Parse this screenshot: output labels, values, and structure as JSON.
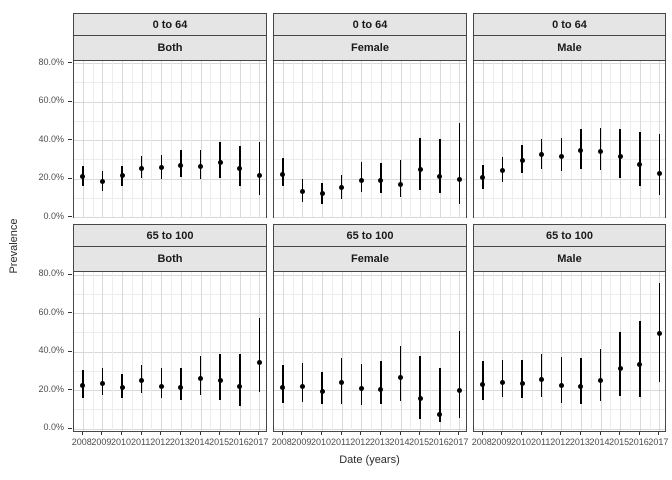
{
  "figure": {
    "x_axis_title": "Date (years)",
    "y_axis_title": "Prevalence"
  },
  "chart_data": {
    "type": "scatter",
    "subtype": "pointrange-with-error-bars, faceted grid (2 rows x 3 cols)",
    "title": "",
    "xlabel": "Date (years)",
    "ylabel": "Prevalence",
    "x": [
      2008,
      2009,
      2010,
      2011,
      2012,
      2013,
      2014,
      2015,
      2016,
      2017
    ],
    "x_tick_labels": [
      "2008",
      "2009",
      "2010",
      "2011",
      "2012",
      "2013",
      "2014",
      "2015",
      "2016",
      "2017"
    ],
    "y_tick_labels": [
      "80.0%",
      "60.0%",
      "40.0%",
      "20.0%",
      "0.0%"
    ],
    "y_tick_values": [
      80,
      60,
      40,
      20,
      0
    ],
    "ylim_percent": [
      0,
      80
    ],
    "grid": "major and minor, light gray on white",
    "legend": "none",
    "facet_row_labels": [
      "0 to 64",
      "65 to 100"
    ],
    "facet_col_labels": [
      "Both",
      "Female",
      "Male"
    ],
    "panels": [
      {
        "age_group": "0 to 64",
        "sex": "Both",
        "estimates": [
          21,
          18.5,
          21.5,
          25,
          25.5,
          27,
          26,
          28.5,
          25,
          21.5
        ],
        "ci_low": [
          16,
          13.5,
          16,
          20,
          19.5,
          21,
          19.5,
          20.5,
          16,
          11.5
        ],
        "ci_high": [
          26.5,
          24,
          26.5,
          31.5,
          32,
          35,
          35,
          39,
          37,
          39
        ]
      },
      {
        "age_group": "0 to 64",
        "sex": "Female",
        "estimates": [
          22,
          13.5,
          12,
          15.5,
          19,
          19,
          17,
          24.5,
          21,
          19.5
        ],
        "ci_low": [
          16,
          8,
          7,
          9.5,
          13,
          12.5,
          10.5,
          14,
          12.5,
          6.5
        ],
        "ci_high": [
          30.5,
          20,
          17.5,
          22,
          28.5,
          28,
          29.5,
          41,
          40.5,
          49
        ]
      },
      {
        "age_group": "0 to 64",
        "sex": "Male",
        "estimates": [
          20.5,
          24,
          29.5,
          32.5,
          31.5,
          34.5,
          34,
          31.5,
          27.5,
          22.5
        ],
        "ci_low": [
          14.5,
          18,
          23,
          25,
          24,
          25,
          24.5,
          20.5,
          16,
          11.5
        ],
        "ci_high": [
          27,
          31,
          37.5,
          40.5,
          41,
          45.5,
          46,
          45.5,
          44,
          43
        ]
      },
      {
        "age_group": "65 to 100",
        "sex": "Both",
        "estimates": [
          22.5,
          23.5,
          21.5,
          25,
          22,
          21.5,
          26,
          25,
          22,
          34.5
        ],
        "ci_low": [
          16,
          17.5,
          16,
          18.5,
          16,
          15,
          17.5,
          15,
          11.5,
          19
        ],
        "ci_high": [
          30.5,
          31.5,
          28.5,
          33,
          31.5,
          31.5,
          37.5,
          38.5,
          38.5,
          57.5
        ]
      },
      {
        "age_group": "65 to 100",
        "sex": "Female",
        "estimates": [
          21.5,
          22,
          19,
          24,
          21,
          20.5,
          26.5,
          15.5,
          7.5,
          19.5
        ],
        "ci_low": [
          13,
          14,
          12.5,
          12.5,
          12,
          12.5,
          14.5,
          5,
          3.5,
          5.5
        ],
        "ci_high": [
          33,
          34,
          29.5,
          36.5,
          33.5,
          35,
          43,
          37.5,
          31.5,
          50.5
        ]
      },
      {
        "age_group": "65 to 100",
        "sex": "Male",
        "estimates": [
          23,
          24,
          23.5,
          25.5,
          22.5,
          22,
          25,
          31,
          33,
          49.5
        ],
        "ci_low": [
          15,
          16.5,
          16,
          16.5,
          13,
          12.5,
          14.5,
          17,
          16.5,
          24
        ],
        "ci_high": [
          35,
          35.5,
          35.5,
          38.5,
          37,
          36.5,
          41.5,
          50,
          56,
          75.5
        ]
      }
    ],
    "colors": {
      "point": "#000000",
      "error_bar": "#000000",
      "strip_background": "#E5E5E5",
      "panel_background": "#FFFFFF",
      "panel_border": "#474747",
      "grid_major": "#D9D9D9",
      "grid_minor": "#EDEDED",
      "tick_label": "#4D4D4D",
      "axis_title": "#2A2A2A"
    }
  }
}
